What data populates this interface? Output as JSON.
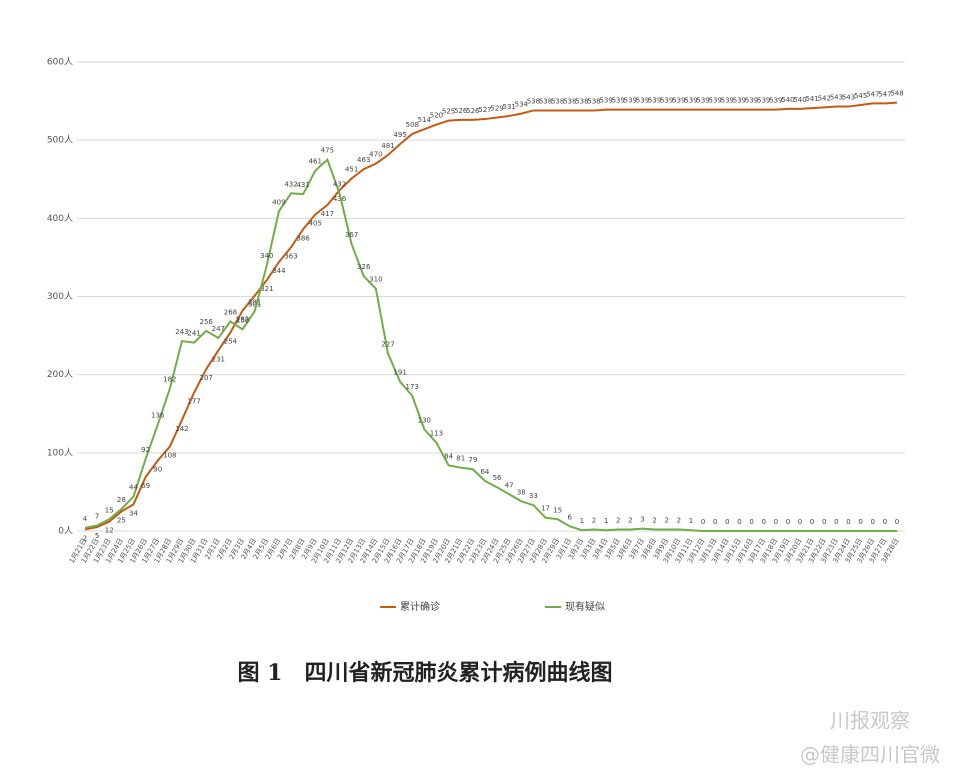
{
  "chart_data": {
    "type": "line",
    "categories": [
      "1月21日",
      "1月22日",
      "1月23日",
      "1月24日",
      "1月25日",
      "1月26日",
      "1月27日",
      "1月28日",
      "1月29日",
      "1月30日",
      "1月31日",
      "2月1日",
      "2月2日",
      "2月3日",
      "2月4日",
      "2月5日",
      "2月6日",
      "2月7日",
      "2月8日",
      "2月9日",
      "2月10日",
      "2月11日",
      "2月12日",
      "2月13日",
      "2月14日",
      "2月15日",
      "2月16日",
      "2月17日",
      "2月18日",
      "2月19日",
      "2月20日",
      "2月21日",
      "2月22日",
      "2月23日",
      "2月24日",
      "2月25日",
      "2月26日",
      "2月27日",
      "2月28日",
      "2月29日",
      "3月1日",
      "3月2日",
      "3月3日",
      "3月4日",
      "3月5日",
      "3月6日",
      "3月7日",
      "3月8日",
      "3月9日",
      "3月10日",
      "3月11日",
      "3月12日",
      "3月13日",
      "3月14日",
      "3月15日",
      "3月16日",
      "3月17日",
      "3月18日",
      "3月19日",
      "3月20日",
      "3月21日",
      "3月22日",
      "3月23日",
      "3月24日",
      "3月25日",
      "3月26日",
      "3月27日",
      "3月28日"
    ],
    "series": [
      {
        "name": "累计确诊",
        "color": "#c55a11",
        "values": [
          2,
          5,
          12,
          25,
          34,
          69,
          90,
          108,
          142,
          177,
          207,
          231,
          254,
          282,
          301,
          321,
          344,
          363,
          386,
          405,
          417,
          436,
          451,
          463,
          470,
          481,
          495,
          508,
          514,
          520,
          525,
          526,
          526,
          527,
          529,
          531,
          534,
          538,
          538,
          538,
          538,
          538,
          538,
          539,
          539,
          539,
          539,
          539,
          539,
          539,
          539,
          539,
          539,
          539,
          539,
          539,
          539,
          539,
          540,
          540,
          541,
          542,
          543,
          543,
          545,
          547,
          547,
          548
        ]
      },
      {
        "name": "现有疑似",
        "color": "#70ad47",
        "values": [
          4,
          7,
          15,
          28,
          44,
          92,
          136,
          182,
          243,
          241,
          256,
          247,
          268,
          258,
          281,
          340,
          409,
          432,
          431,
          461,
          475,
          432,
          367,
          326,
          310,
          227,
          191,
          173,
          130,
          113,
          84,
          81,
          79,
          64,
          56,
          47,
          38,
          33,
          17,
          15,
          6,
          1,
          2,
          1,
          2,
          2,
          3,
          2,
          2,
          2,
          1,
          0,
          0,
          0,
          0,
          0,
          0,
          0,
          0,
          0,
          0,
          0,
          0,
          0,
          0,
          0,
          0,
          0
        ]
      }
    ],
    "ylim": [
      0,
      600
    ],
    "yticks": [
      {
        "value": 0,
        "label": "0人"
      },
      {
        "value": 100,
        "label": "100人"
      },
      {
        "value": 200,
        "label": "200人"
      },
      {
        "value": 300,
        "label": "300人"
      },
      {
        "value": 400,
        "label": "400人"
      },
      {
        "value": 500,
        "label": "500人"
      },
      {
        "value": 600,
        "label": "600人"
      }
    ],
    "grid": true,
    "legend": "bottom"
  },
  "caption": "图 1　四川省新冠肺炎累计病例曲线图",
  "watermark": [
    "川报观察",
    "@健康四川官微"
  ]
}
